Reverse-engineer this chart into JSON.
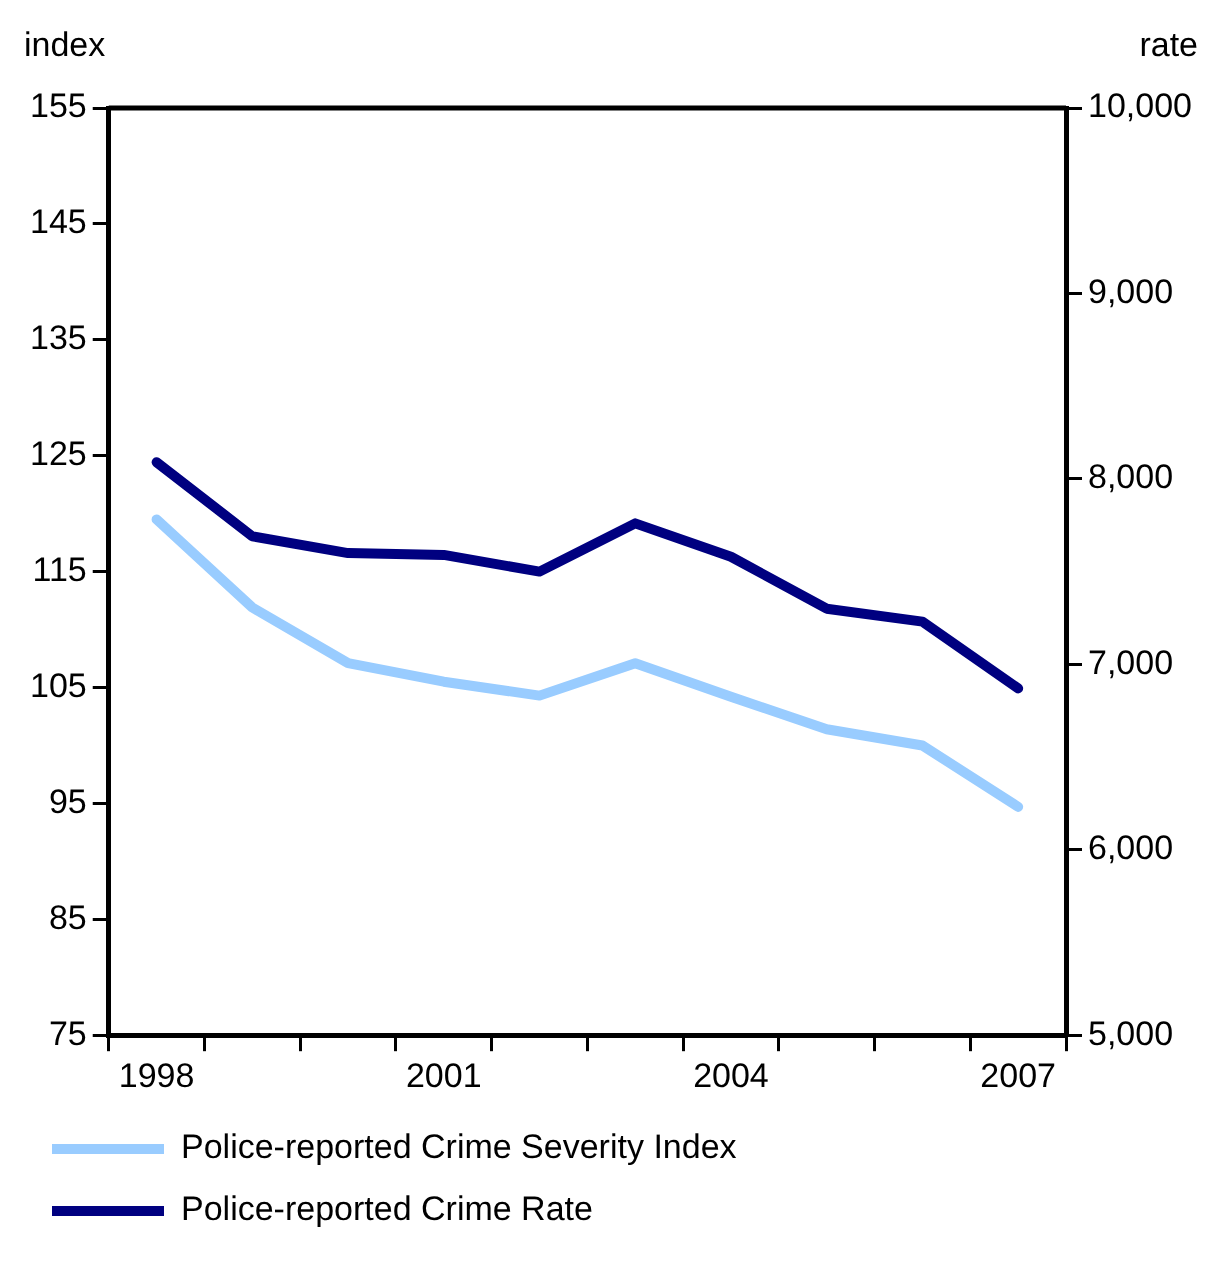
{
  "chart_data": {
    "type": "line",
    "ylabel": "index",
    "y2label": "rate",
    "categories": [
      "1998",
      null,
      null,
      "2001",
      null,
      null,
      "2004",
      null,
      null,
      "2007"
    ],
    "series": [
      {
        "name": "Police-reported Crime Severity Index",
        "color": "#99ccff",
        "values": [
          119.5,
          111.9,
          107.1,
          105.5,
          104.3,
          107.1,
          104.2,
          101.4,
          100.0,
          94.7
        ]
      },
      {
        "name": "Police-reported Crime Rate",
        "color": "#000080",
        "axis": "y2",
        "values": [
          8090,
          7690,
          7600,
          7590,
          7500,
          7760,
          7580,
          7300,
          7230,
          6870
        ]
      }
    ],
    "ylim": [
      75,
      155
    ],
    "yticks": [
      75,
      85,
      95,
      105,
      115,
      125,
      135,
      145,
      155
    ],
    "y2lim": [
      5000,
      10000
    ],
    "y2ticks": [
      {
        "value": 5000,
        "label": "5,000"
      },
      {
        "value": 6000,
        "label": "6,000"
      },
      {
        "value": 7000,
        "label": "7,000"
      },
      {
        "value": 8000,
        "label": "8,000"
      },
      {
        "value": 9000,
        "label": "9,000"
      },
      {
        "value": 10000,
        "label": "10,000"
      }
    ],
    "grid": false,
    "legend": "bottom",
    "marker": "none",
    "line_style": "solid"
  }
}
